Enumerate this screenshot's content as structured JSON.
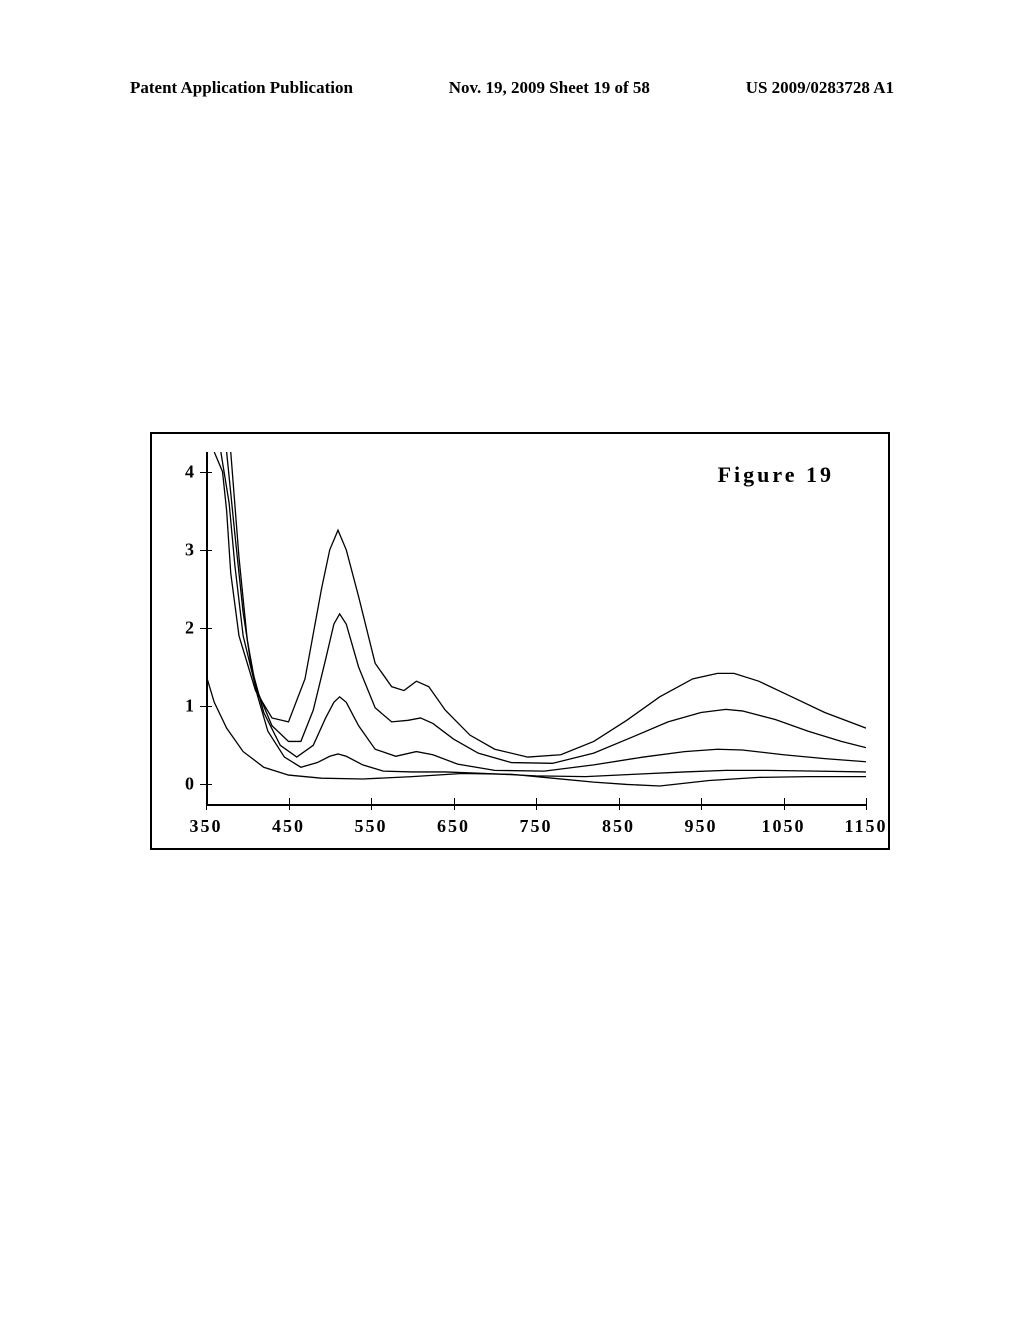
{
  "header": {
    "left": "Patent Application Publication",
    "center": "Nov. 19, 2009  Sheet 19 of 58",
    "right": "US 2009/0283728 A1"
  },
  "chart": {
    "type": "line",
    "figure_label": "Figure 19",
    "background_color": "#ffffff",
    "line_color": "#000000",
    "line_width": 1.3,
    "border_color": "#000000",
    "border_width": 2,
    "xlim": [
      350,
      1150
    ],
    "ylim": [
      -0.25,
      4.25
    ],
    "x_ticks": [
      350,
      450,
      550,
      650,
      750,
      850,
      950,
      1050,
      1150
    ],
    "y_ticks": [
      0,
      1,
      2,
      3,
      4
    ],
    "tick_font_size": 18,
    "tick_font_weight": "bold",
    "x_tick_labels": [
      "350",
      "450",
      "550",
      "650",
      "750",
      "850",
      "950",
      "1050",
      "1150"
    ],
    "y_tick_labels": [
      "0",
      "1",
      "2",
      "3",
      "4"
    ],
    "series": [
      {
        "name": "curve-1",
        "points": [
          [
            360,
            4.25
          ],
          [
            370,
            4.0
          ],
          [
            375,
            3.5
          ],
          [
            380,
            2.7
          ],
          [
            390,
            1.9
          ],
          [
            410,
            1.2
          ],
          [
            430,
            0.85
          ],
          [
            450,
            0.8
          ],
          [
            470,
            1.35
          ],
          [
            490,
            2.5
          ],
          [
            500,
            3.0
          ],
          [
            510,
            3.25
          ],
          [
            520,
            3.0
          ],
          [
            535,
            2.4
          ],
          [
            555,
            1.55
          ],
          [
            575,
            1.25
          ],
          [
            590,
            1.2
          ],
          [
            605,
            1.32
          ],
          [
            620,
            1.25
          ],
          [
            640,
            0.95
          ],
          [
            670,
            0.63
          ],
          [
            700,
            0.45
          ],
          [
            740,
            0.35
          ],
          [
            780,
            0.38
          ],
          [
            820,
            0.55
          ],
          [
            860,
            0.82
          ],
          [
            900,
            1.12
          ],
          [
            940,
            1.35
          ],
          [
            970,
            1.42
          ],
          [
            990,
            1.42
          ],
          [
            1020,
            1.32
          ],
          [
            1060,
            1.12
          ],
          [
            1100,
            0.92
          ],
          [
            1150,
            0.72
          ]
        ]
      },
      {
        "name": "curve-2",
        "points": [
          [
            368,
            4.25
          ],
          [
            378,
            3.6
          ],
          [
            385,
            2.8
          ],
          [
            395,
            1.9
          ],
          [
            410,
            1.25
          ],
          [
            430,
            0.75
          ],
          [
            450,
            0.55
          ],
          [
            465,
            0.55
          ],
          [
            480,
            0.95
          ],
          [
            495,
            1.6
          ],
          [
            505,
            2.05
          ],
          [
            512,
            2.18
          ],
          [
            520,
            2.05
          ],
          [
            535,
            1.5
          ],
          [
            555,
            0.98
          ],
          [
            575,
            0.8
          ],
          [
            595,
            0.82
          ],
          [
            610,
            0.85
          ],
          [
            625,
            0.78
          ],
          [
            650,
            0.58
          ],
          [
            680,
            0.4
          ],
          [
            720,
            0.28
          ],
          [
            770,
            0.27
          ],
          [
            820,
            0.4
          ],
          [
            870,
            0.62
          ],
          [
            910,
            0.8
          ],
          [
            950,
            0.92
          ],
          [
            980,
            0.96
          ],
          [
            1000,
            0.94
          ],
          [
            1040,
            0.83
          ],
          [
            1080,
            0.68
          ],
          [
            1120,
            0.55
          ],
          [
            1150,
            0.47
          ]
        ]
      },
      {
        "name": "curve-3",
        "points": [
          [
            375,
            4.25
          ],
          [
            385,
            3.2
          ],
          [
            395,
            2.2
          ],
          [
            405,
            1.5
          ],
          [
            420,
            0.92
          ],
          [
            440,
            0.5
          ],
          [
            460,
            0.35
          ],
          [
            480,
            0.5
          ],
          [
            495,
            0.85
          ],
          [
            505,
            1.05
          ],
          [
            512,
            1.12
          ],
          [
            520,
            1.05
          ],
          [
            535,
            0.75
          ],
          [
            555,
            0.45
          ],
          [
            580,
            0.36
          ],
          [
            605,
            0.42
          ],
          [
            625,
            0.38
          ],
          [
            655,
            0.26
          ],
          [
            700,
            0.18
          ],
          [
            760,
            0.17
          ],
          [
            820,
            0.25
          ],
          [
            880,
            0.35
          ],
          [
            930,
            0.42
          ],
          [
            970,
            0.45
          ],
          [
            1000,
            0.44
          ],
          [
            1050,
            0.38
          ],
          [
            1100,
            0.33
          ],
          [
            1150,
            0.29
          ]
        ]
      },
      {
        "name": "curve-4",
        "points": [
          [
            380,
            4.25
          ],
          [
            390,
            2.9
          ],
          [
            400,
            1.85
          ],
          [
            412,
            1.15
          ],
          [
            425,
            0.68
          ],
          [
            445,
            0.35
          ],
          [
            465,
            0.22
          ],
          [
            485,
            0.28
          ],
          [
            500,
            0.36
          ],
          [
            510,
            0.39
          ],
          [
            520,
            0.36
          ],
          [
            540,
            0.25
          ],
          [
            565,
            0.17
          ],
          [
            600,
            0.16
          ],
          [
            640,
            0.16
          ],
          [
            690,
            0.14
          ],
          [
            750,
            0.11
          ],
          [
            810,
            0.1
          ],
          [
            870,
            0.13
          ],
          [
            930,
            0.16
          ],
          [
            980,
            0.18
          ],
          [
            1030,
            0.18
          ],
          [
            1090,
            0.17
          ],
          [
            1150,
            0.16
          ]
        ]
      },
      {
        "name": "curve-5",
        "points": [
          [
            350,
            1.4
          ],
          [
            360,
            1.05
          ],
          [
            375,
            0.72
          ],
          [
            395,
            0.42
          ],
          [
            420,
            0.22
          ],
          [
            450,
            0.12
          ],
          [
            490,
            0.08
          ],
          [
            540,
            0.07
          ],
          [
            600,
            0.1
          ],
          [
            660,
            0.14
          ],
          [
            720,
            0.13
          ],
          [
            770,
            0.08
          ],
          [
            820,
            0.03
          ],
          [
            860,
            0.0
          ],
          [
            900,
            -0.02
          ],
          [
            960,
            0.05
          ],
          [
            1020,
            0.09
          ],
          [
            1080,
            0.1
          ],
          [
            1150,
            0.1
          ]
        ]
      }
    ]
  }
}
